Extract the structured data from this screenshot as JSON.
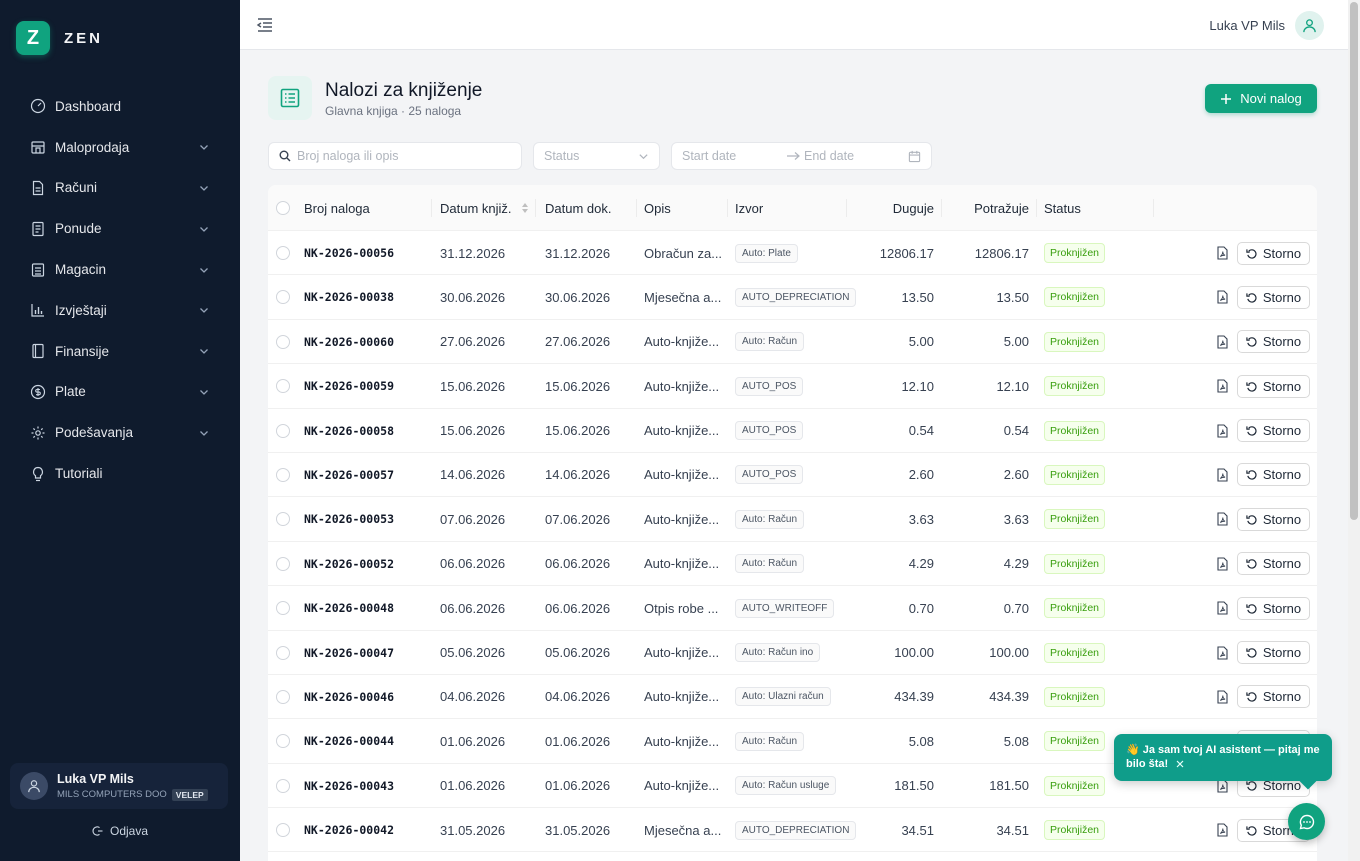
{
  "brand": {
    "logo_letter": "Z",
    "name": "ZEN",
    "accent": "#10a37f"
  },
  "sidebar": {
    "items": [
      {
        "label": "Dashboard",
        "icon": "dashboard-icon",
        "expandable": false
      },
      {
        "label": "Maloprodaja",
        "icon": "store-icon",
        "expandable": true
      },
      {
        "label": "Računi",
        "icon": "file-icon",
        "expandable": true
      },
      {
        "label": "Ponude",
        "icon": "document-icon",
        "expandable": true
      },
      {
        "label": "Magacin",
        "icon": "warehouse-icon",
        "expandable": true
      },
      {
        "label": "Izvještaji",
        "icon": "bar-chart-icon",
        "expandable": true
      },
      {
        "label": "Finansije",
        "icon": "book-icon",
        "expandable": true
      },
      {
        "label": "Plate",
        "icon": "dollar-icon",
        "expandable": true
      },
      {
        "label": "Podešavanja",
        "icon": "gear-icon",
        "expandable": true
      },
      {
        "label": "Tutoriali",
        "icon": "bulb-icon",
        "expandable": false
      }
    ],
    "user": {
      "name": "Luka VP Mils",
      "company": "MILS COMPUTERS DOO",
      "tag": "VELEP"
    },
    "logout_label": "Odjava"
  },
  "topbar": {
    "user_name": "Luka VP Mils"
  },
  "page": {
    "title": "Nalozi za knjiženje",
    "subtitle": "Glavna knjiga · 25 naloga",
    "new_button": "Novi nalog"
  },
  "filters": {
    "search_placeholder": "Broj naloga ili opis",
    "status_placeholder": "Status",
    "start_date_placeholder": "Start date",
    "end_date_placeholder": "End date"
  },
  "table": {
    "columns": [
      "Broj naloga",
      "Datum knjiž.",
      "Datum dok.",
      "Opis",
      "Izvor",
      "Duguje",
      "Potražuje",
      "Status"
    ],
    "storno_label": "Storno",
    "rows": [
      {
        "num": "NK-2026-00056",
        "dk": "31.12.2026",
        "dd": "31.12.2026",
        "opis": "Obračun za...",
        "izvor": "Auto: Plate",
        "duguje": "12806.17",
        "potrazuje": "12806.17",
        "status": "Proknjižen"
      },
      {
        "num": "NK-2026-00038",
        "dk": "30.06.2026",
        "dd": "30.06.2026",
        "opis": "Mjesečna a...",
        "izvor": "AUTO_DEPRECIATION",
        "duguje": "13.50",
        "potrazuje": "13.50",
        "status": "Proknjižen"
      },
      {
        "num": "NK-2026-00060",
        "dk": "27.06.2026",
        "dd": "27.06.2026",
        "opis": "Auto-knjiže...",
        "izvor": "Auto: Račun",
        "duguje": "5.00",
        "potrazuje": "5.00",
        "status": "Proknjižen"
      },
      {
        "num": "NK-2026-00059",
        "dk": "15.06.2026",
        "dd": "15.06.2026",
        "opis": "Auto-knjiže...",
        "izvor": "AUTO_POS",
        "duguje": "12.10",
        "potrazuje": "12.10",
        "status": "Proknjižen"
      },
      {
        "num": "NK-2026-00058",
        "dk": "15.06.2026",
        "dd": "15.06.2026",
        "opis": "Auto-knjiže...",
        "izvor": "AUTO_POS",
        "duguje": "0.54",
        "potrazuje": "0.54",
        "status": "Proknjižen"
      },
      {
        "num": "NK-2026-00057",
        "dk": "14.06.2026",
        "dd": "14.06.2026",
        "opis": "Auto-knjiže...",
        "izvor": "AUTO_POS",
        "duguje": "2.60",
        "potrazuje": "2.60",
        "status": "Proknjižen"
      },
      {
        "num": "NK-2026-00053",
        "dk": "07.06.2026",
        "dd": "07.06.2026",
        "opis": "Auto-knjiže...",
        "izvor": "Auto: Račun",
        "duguje": "3.63",
        "potrazuje": "3.63",
        "status": "Proknjižen"
      },
      {
        "num": "NK-2026-00052",
        "dk": "06.06.2026",
        "dd": "06.06.2026",
        "opis": "Auto-knjiže...",
        "izvor": "Auto: Račun",
        "duguje": "4.29",
        "potrazuje": "4.29",
        "status": "Proknjižen"
      },
      {
        "num": "NK-2026-00048",
        "dk": "06.06.2026",
        "dd": "06.06.2026",
        "opis": "Otpis robe ...",
        "izvor": "AUTO_WRITEOFF",
        "duguje": "0.70",
        "potrazuje": "0.70",
        "status": "Proknjižen"
      },
      {
        "num": "NK-2026-00047",
        "dk": "05.06.2026",
        "dd": "05.06.2026",
        "opis": "Auto-knjiže...",
        "izvor": "Auto: Račun ino",
        "duguje": "100.00",
        "potrazuje": "100.00",
        "status": "Proknjižen"
      },
      {
        "num": "NK-2026-00046",
        "dk": "04.06.2026",
        "dd": "04.06.2026",
        "opis": "Auto-knjiže...",
        "izvor": "Auto: Ulazni račun",
        "duguje": "434.39",
        "potrazuje": "434.39",
        "status": "Proknjižen"
      },
      {
        "num": "NK-2026-00044",
        "dk": "01.06.2026",
        "dd": "01.06.2026",
        "opis": "Auto-knjiže...",
        "izvor": "Auto: Račun",
        "duguje": "5.08",
        "potrazuje": "5.08",
        "status": "Proknjižen"
      },
      {
        "num": "NK-2026-00043",
        "dk": "01.06.2026",
        "dd": "01.06.2026",
        "opis": "Auto-knjiže...",
        "izvor": "Auto: Račun usluge",
        "duguje": "181.50",
        "potrazuje": "181.50",
        "status": "Proknjižen"
      },
      {
        "num": "NK-2026-00042",
        "dk": "31.05.2026",
        "dd": "31.05.2026",
        "opis": "Mjesečna a...",
        "izvor": "AUTO_DEPRECIATION",
        "duguje": "34.51",
        "potrazuje": "34.51",
        "status": "Proknjižen"
      }
    ]
  },
  "ai": {
    "message": "👋 Ja sam tvoj AI asistent — pitaj me bilo šta!"
  }
}
